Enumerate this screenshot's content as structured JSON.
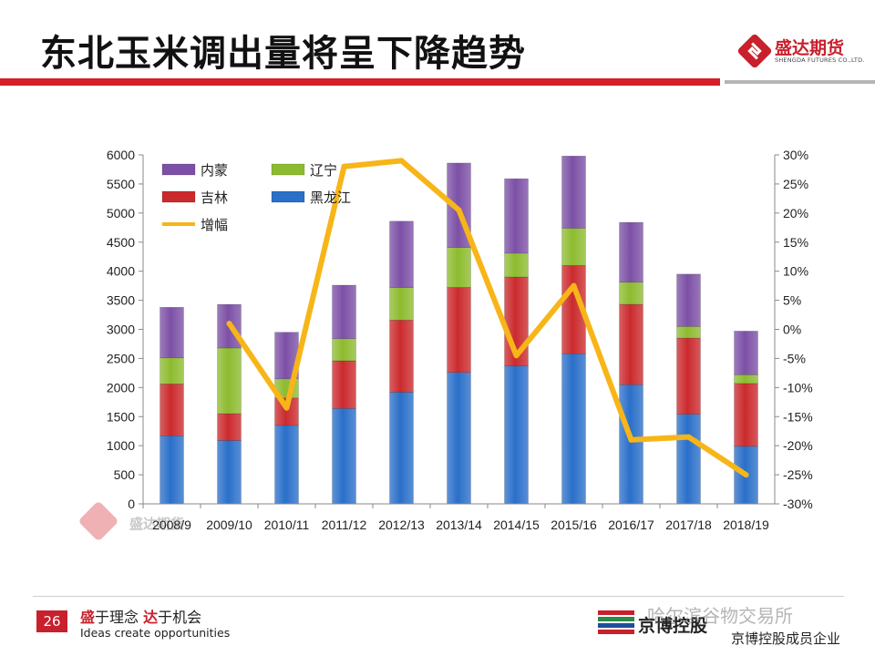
{
  "slide": {
    "title": "东北玉米调出量将呈下降趋势",
    "page_number": "26",
    "slogan_a_red": "盛",
    "slogan_a_rest": "于理念 ",
    "slogan_b_red": "达",
    "slogan_b_rest": "于机会",
    "slogan_en": "Ideas create opportunities",
    "brand_name": "盛达期货",
    "brand_sub": "SHENGDA FUTURES CO.,LTD.",
    "footer_company": "京博控股",
    "footer_member": "京博控股成员企业",
    "watermark_text": "哈尔滨谷物交易所"
  },
  "colors": {
    "accent_red": "#d52027",
    "neimeng": "#7c50a6",
    "liaoning": "#8dbb2f",
    "jilin": "#cb2a2d",
    "heilongjiang": "#2a6fc9",
    "growth_line": "#f7b518"
  },
  "chart_data": {
    "type": "bar",
    "stacked": true,
    "categories": [
      "2008/9",
      "2009/10",
      "2010/11",
      "2011/12",
      "2012/13",
      "2013/14",
      "2014/15",
      "2015/16",
      "2016/17",
      "2017/18",
      "2018/19"
    ],
    "series": [
      {
        "name": "黑龙江",
        "color_key": "heilongjiang",
        "values": [
          1170,
          1090,
          1350,
          1640,
          1920,
          2260,
          2370,
          2580,
          2050,
          1540,
          990
        ]
      },
      {
        "name": "吉林",
        "color_key": "jilin",
        "values": [
          890,
          460,
          470,
          820,
          1240,
          1460,
          1530,
          1520,
          1380,
          1310,
          1080
        ]
      },
      {
        "name": "辽宁",
        "color_key": "liaoning",
        "values": [
          450,
          1130,
          330,
          380,
          560,
          690,
          410,
          640,
          380,
          200,
          150
        ]
      },
      {
        "name": "内蒙",
        "color_key": "neimeng",
        "values": [
          870,
          750,
          800,
          920,
          1140,
          1450,
          1280,
          1240,
          1030,
          900,
          750
        ]
      }
    ],
    "line": {
      "name": "增幅",
      "color_key": "growth_line",
      "axis": "right",
      "values": [
        null,
        1.0,
        -13.5,
        28.0,
        29.0,
        20.5,
        -4.5,
        7.5,
        -19.0,
        -18.5,
        -25.0
      ]
    },
    "left_axis": {
      "min": 0,
      "max": 6000,
      "step": 500,
      "tick_labels": [
        "0",
        "500",
        "1000",
        "1500",
        "2000",
        "2500",
        "3000",
        "3500",
        "4000",
        "4500",
        "5000",
        "5500",
        "6000"
      ]
    },
    "right_axis": {
      "min": -30,
      "max": 30,
      "step": 5,
      "tick_labels": [
        "-30%",
        "-25%",
        "-20%",
        "-15%",
        "-10%",
        "-5%",
        "0%",
        "5%",
        "10%",
        "15%",
        "20%",
        "25%",
        "30%"
      ]
    },
    "legend": [
      {
        "label": "内蒙",
        "color_key": "neimeng",
        "kind": "box"
      },
      {
        "label": "辽宁",
        "color_key": "liaoning",
        "kind": "box"
      },
      {
        "label": "吉林",
        "color_key": "jilin",
        "kind": "box"
      },
      {
        "label": "黑龙江",
        "color_key": "heilongjiang",
        "kind": "box"
      },
      {
        "label": "增幅",
        "color_key": "growth_line",
        "kind": "line"
      }
    ],
    "legend_position": "top-left",
    "watermark_text": "盛达期货"
  }
}
